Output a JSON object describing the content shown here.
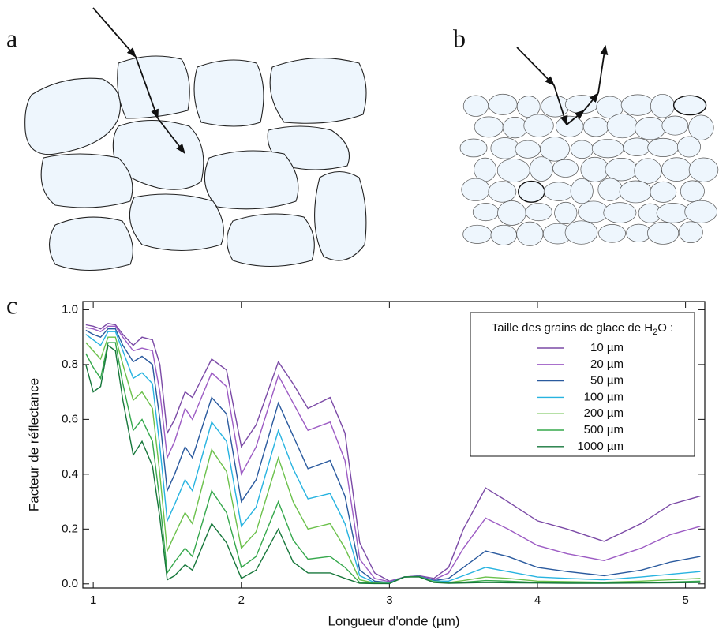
{
  "panel_labels": [
    "a",
    "b",
    "c"
  ],
  "chart_data": {
    "type": "line",
    "xlabel": "Longueur d'onde (µm)",
    "ylabel": "Facteur de réflectance",
    "legend_title": {
      "text": "Taille des grains de glace de H",
      "sub": "2",
      "tail": "O :"
    },
    "xlim": [
      0.93,
      5.13
    ],
    "xticks": [
      1,
      2,
      3,
      4,
      5
    ],
    "ylim": [
      -0.015,
      1.03
    ],
    "yticks": [
      {
        "value": 0,
        "label": "0.0"
      },
      0.2,
      0.4,
      0.6,
      0.8,
      {
        "value": 1,
        "label": "1.0"
      }
    ],
    "legend": "upper right",
    "x": [
      0.95,
      1.0,
      1.05,
      1.1,
      1.15,
      1.2,
      1.27,
      1.33,
      1.4,
      1.45,
      1.5,
      1.55,
      1.62,
      1.67,
      1.8,
      1.9,
      2.0,
      2.1,
      2.25,
      2.35,
      2.45,
      2.6,
      2.7,
      2.8,
      2.9,
      3.0,
      3.1,
      3.2,
      3.3,
      3.4,
      3.5,
      3.65,
      3.8,
      4.0,
      4.2,
      4.45,
      4.7,
      4.9,
      5.1
    ],
    "series": [
      {
        "name": "10 µm",
        "color": "#7b4aa6",
        "values": [
          0.945,
          0.94,
          0.93,
          0.95,
          0.945,
          0.91,
          0.87,
          0.9,
          0.89,
          0.8,
          0.55,
          0.6,
          0.7,
          0.68,
          0.82,
          0.78,
          0.5,
          0.58,
          0.81,
          0.73,
          0.64,
          0.68,
          0.55,
          0.15,
          0.04,
          0.01,
          0.025,
          0.03,
          0.02,
          0.06,
          0.2,
          0.35,
          0.3,
          0.23,
          0.2,
          0.155,
          0.22,
          0.29,
          0.32
        ]
      },
      {
        "name": "20 µm",
        "color": "#9d5cc4",
        "values": [
          0.935,
          0.93,
          0.92,
          0.94,
          0.94,
          0.9,
          0.85,
          0.86,
          0.85,
          0.7,
          0.46,
          0.52,
          0.64,
          0.6,
          0.77,
          0.72,
          0.4,
          0.5,
          0.76,
          0.66,
          0.56,
          0.59,
          0.45,
          0.09,
          0.02,
          0.008,
          0.025,
          0.028,
          0.015,
          0.04,
          0.13,
          0.24,
          0.2,
          0.14,
          0.11,
          0.085,
          0.13,
          0.18,
          0.21
        ]
      },
      {
        "name": "50 µm",
        "color": "#2a5a9e",
        "values": [
          0.925,
          0.91,
          0.9,
          0.93,
          0.93,
          0.87,
          0.81,
          0.83,
          0.8,
          0.6,
          0.34,
          0.4,
          0.5,
          0.46,
          0.68,
          0.62,
          0.3,
          0.38,
          0.66,
          0.54,
          0.42,
          0.45,
          0.32,
          0.05,
          0.01,
          0.005,
          0.025,
          0.028,
          0.012,
          0.02,
          0.06,
          0.12,
          0.1,
          0.06,
          0.045,
          0.03,
          0.05,
          0.08,
          0.1
        ]
      },
      {
        "name": "100 µm",
        "color": "#27b3e0",
        "values": [
          0.91,
          0.89,
          0.87,
          0.92,
          0.92,
          0.85,
          0.75,
          0.77,
          0.73,
          0.5,
          0.23,
          0.29,
          0.38,
          0.34,
          0.59,
          0.52,
          0.21,
          0.28,
          0.56,
          0.42,
          0.31,
          0.33,
          0.22,
          0.03,
          0.005,
          0.003,
          0.025,
          0.027,
          0.01,
          0.01,
          0.03,
          0.06,
          0.045,
          0.025,
          0.02,
          0.015,
          0.025,
          0.035,
          0.045
        ]
      },
      {
        "name": "200 µm",
        "color": "#6cc14c",
        "values": [
          0.88,
          0.85,
          0.82,
          0.9,
          0.9,
          0.8,
          0.67,
          0.7,
          0.64,
          0.4,
          0.12,
          0.18,
          0.26,
          0.22,
          0.49,
          0.41,
          0.13,
          0.19,
          0.46,
          0.3,
          0.2,
          0.22,
          0.13,
          0.015,
          0.003,
          0.002,
          0.025,
          0.027,
          0.008,
          0.005,
          0.012,
          0.025,
          0.02,
          0.01,
          0.008,
          0.006,
          0.01,
          0.015,
          0.02
        ]
      },
      {
        "name": "500 µm",
        "color": "#35a84c",
        "values": [
          0.84,
          0.79,
          0.75,
          0.88,
          0.88,
          0.73,
          0.56,
          0.6,
          0.52,
          0.3,
          0.04,
          0.08,
          0.13,
          0.1,
          0.34,
          0.26,
          0.06,
          0.1,
          0.3,
          0.16,
          0.09,
          0.1,
          0.06,
          0.005,
          0.002,
          0.001,
          0.025,
          0.026,
          0.006,
          0.003,
          0.006,
          0.012,
          0.01,
          0.005,
          0.004,
          0.003,
          0.005,
          0.007,
          0.01
        ]
      },
      {
        "name": "1000 µm",
        "color": "#17773b",
        "values": [
          0.8,
          0.7,
          0.72,
          0.87,
          0.85,
          0.67,
          0.47,
          0.52,
          0.43,
          0.24,
          0.015,
          0.03,
          0.07,
          0.05,
          0.22,
          0.15,
          0.02,
          0.05,
          0.2,
          0.08,
          0.04,
          0.04,
          0.02,
          0.002,
          0.001,
          0.001,
          0.025,
          0.026,
          0.005,
          0.002,
          0.003,
          0.005,
          0.004,
          0.003,
          0.002,
          0.002,
          0.003,
          0.004,
          0.005
        ]
      }
    ]
  }
}
